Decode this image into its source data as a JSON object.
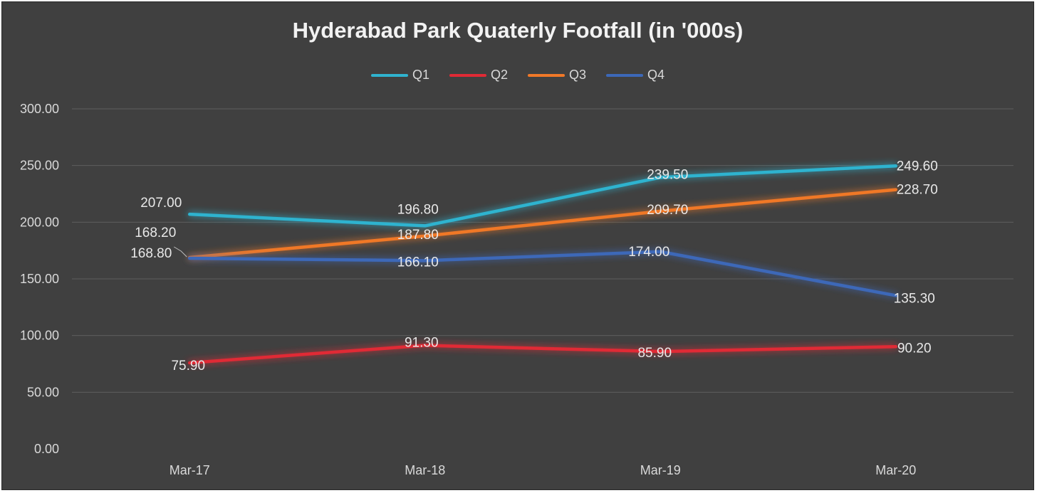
{
  "chart_data": {
    "type": "line",
    "title": "Hyderabad Park Quaterly Footfall (in '000s)",
    "xlabel": "",
    "ylabel": "",
    "categories": [
      "Mar-17",
      "Mar-18",
      "Mar-19",
      "Mar-20"
    ],
    "y_ticks": [
      "0.00",
      "50.00",
      "100.00",
      "150.00",
      "200.00",
      "250.00",
      "300.00"
    ],
    "ylim": [
      0,
      300
    ],
    "grid": true,
    "legend_position": "top",
    "series": [
      {
        "name": "Q1",
        "color": "#2fb3cf",
        "values": [
          207.0,
          196.8,
          239.5,
          249.6
        ],
        "labels": [
          "207.00",
          "196.80",
          "239.50",
          "249.60"
        ]
      },
      {
        "name": "Q2",
        "color": "#e02a35",
        "values": [
          75.9,
          91.3,
          85.9,
          90.2
        ],
        "labels": [
          "75.90",
          "91.30",
          "85.90",
          "90.20"
        ]
      },
      {
        "name": "Q3",
        "color": "#f07828",
        "values": [
          168.8,
          187.8,
          209.7,
          228.7
        ],
        "labels": [
          "168.80",
          "187.80",
          "209.70",
          "228.70"
        ]
      },
      {
        "name": "Q4",
        "color": "#3c68b8",
        "values": [
          168.2,
          166.1,
          174.0,
          135.3
        ],
        "labels": [
          "168.20",
          "166.10",
          "174.00",
          "135.30"
        ]
      }
    ]
  }
}
